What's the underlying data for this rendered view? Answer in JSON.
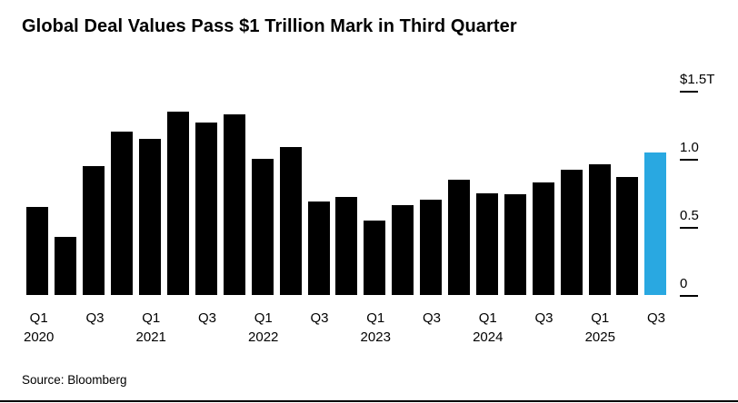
{
  "title": "Global Deal Values Pass $1 Trillion Mark in Third Quarter",
  "source": "Source: Bloomberg",
  "colors": {
    "bar": "#000000",
    "highlight": "#29a8e1",
    "text": "#000000"
  },
  "chart_data": {
    "type": "bar",
    "title": "Global Deal Values Pass $1 Trillion Mark in Third Quarter",
    "unit": "$T",
    "categories": [
      "Q1 2020",
      "Q2 2020",
      "Q3 2020",
      "Q4 2020",
      "Q1 2021",
      "Q2 2021",
      "Q3 2021",
      "Q4 2021",
      "Q1 2022",
      "Q2 2022",
      "Q3 2022",
      "Q4 2022",
      "Q1 2023",
      "Q2 2023",
      "Q3 2023",
      "Q4 2023",
      "Q1 2024",
      "Q2 2024",
      "Q3 2024",
      "Q4 2024",
      "Q1 2025",
      "Q2 2025",
      "Q3 2025"
    ],
    "values": [
      0.65,
      0.43,
      0.95,
      1.2,
      1.15,
      1.35,
      1.27,
      1.33,
      1.0,
      1.09,
      0.69,
      0.72,
      0.55,
      0.66,
      0.7,
      0.85,
      0.75,
      0.74,
      0.83,
      0.92,
      0.96,
      0.87,
      1.05
    ],
    "ylim": [
      0,
      1.5
    ],
    "yticks": [
      {
        "label": "$1.5T",
        "value": 1.5
      },
      {
        "label": "1.0",
        "value": 1.0
      },
      {
        "label": "0.5",
        "value": 0.5
      },
      {
        "label": "0",
        "value": 0
      }
    ],
    "xticks": [
      {
        "index": 0,
        "quarter": "Q1",
        "year": "2020"
      },
      {
        "index": 2,
        "quarter": "Q3"
      },
      {
        "index": 4,
        "quarter": "Q1",
        "year": "2021"
      },
      {
        "index": 6,
        "quarter": "Q3"
      },
      {
        "index": 8,
        "quarter": "Q1",
        "year": "2022"
      },
      {
        "index": 10,
        "quarter": "Q3"
      },
      {
        "index": 12,
        "quarter": "Q1",
        "year": "2023"
      },
      {
        "index": 14,
        "quarter": "Q3"
      },
      {
        "index": 16,
        "quarter": "Q1",
        "year": "2024"
      },
      {
        "index": 18,
        "quarter": "Q3"
      },
      {
        "index": 20,
        "quarter": "Q1",
        "year": "2025"
      },
      {
        "index": 22,
        "quarter": "Q3"
      }
    ],
    "bar_color": "#000000",
    "highlight_color": "#29a8e1",
    "highlight_index": 22,
    "grid": false,
    "legend": null,
    "axis_position": "right"
  }
}
